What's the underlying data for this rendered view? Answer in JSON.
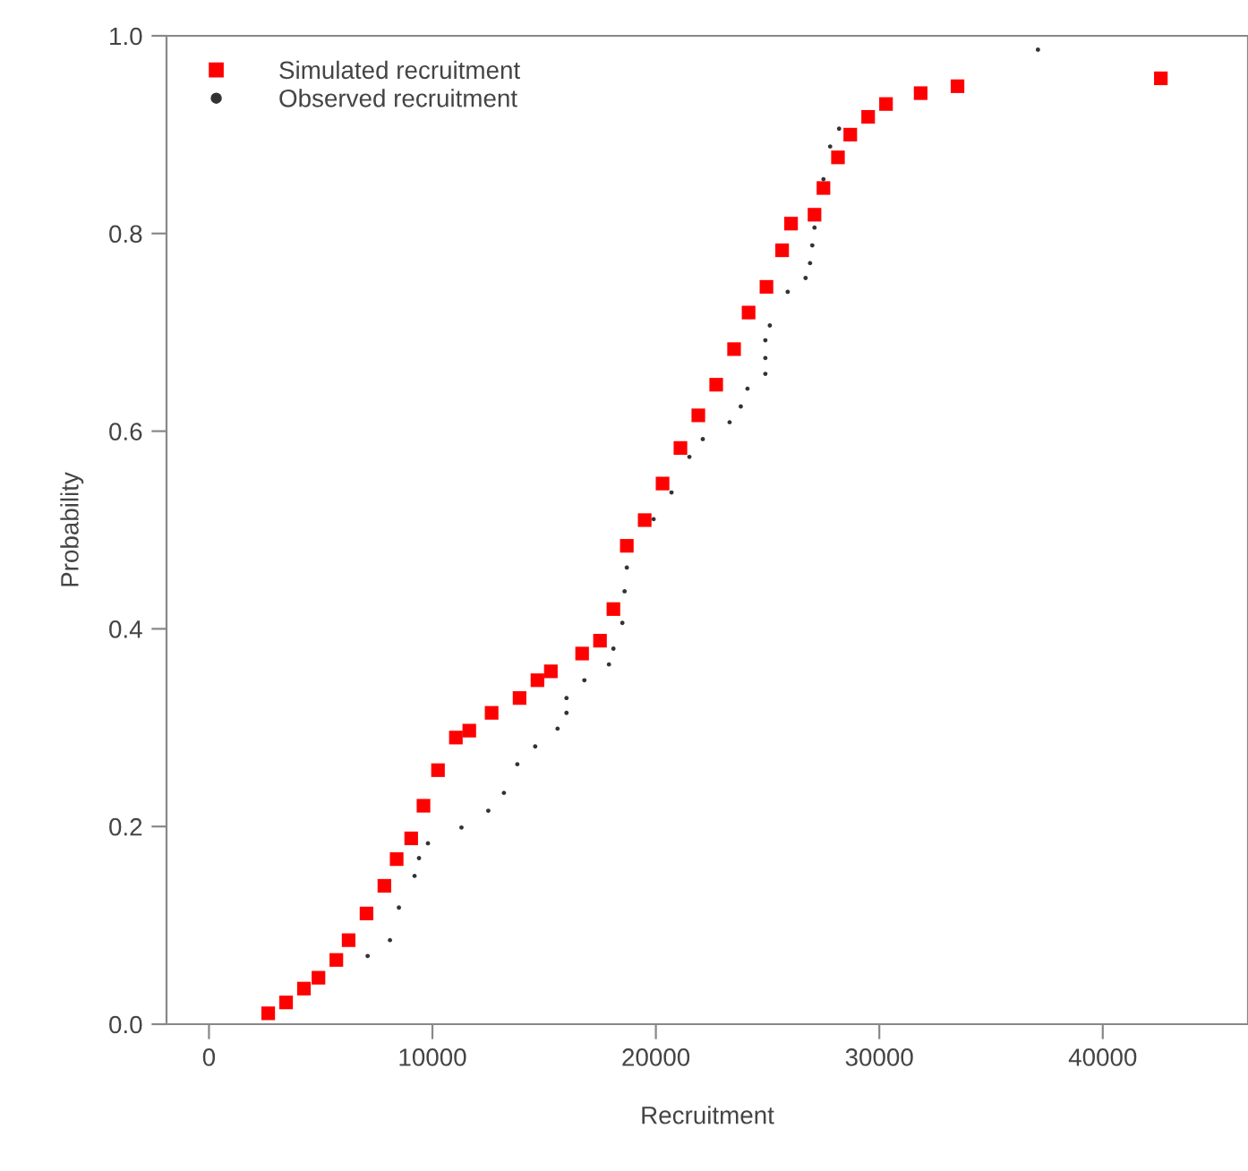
{
  "chart_data": {
    "type": "scatter",
    "xlabel": "Recruitment",
    "ylabel": "Probability",
    "xlim": [
      -1900,
      46500
    ],
    "ylim": [
      0,
      1
    ],
    "xticks": [
      0,
      10000,
      20000,
      30000,
      40000
    ],
    "yticks": [
      {
        "value": 0,
        "label": "0.0"
      },
      {
        "value": 0.2,
        "label": "0.2"
      },
      {
        "value": 0.4,
        "label": "0.4"
      },
      {
        "value": 0.6,
        "label": "0.6"
      },
      {
        "value": 0.8,
        "label": "0.8"
      },
      {
        "value": 1,
        "label": "1.0"
      }
    ],
    "grid": false,
    "legend": "top left",
    "series": [
      {
        "name": "Simulated recruitment",
        "color": "#ff0000",
        "marker": "square",
        "x": [
          2650,
          3450,
          4250,
          4900,
          5700,
          6250,
          7050,
          7850,
          8400,
          9050,
          9600,
          10250,
          11050,
          11650,
          12650,
          13900,
          14700,
          15300,
          16700,
          17500,
          18100,
          18700,
          19500,
          20300,
          21100,
          21900,
          22700,
          23500,
          24150,
          24950,
          25650,
          26050,
          27100,
          27500,
          28150,
          28700,
          29500,
          30300,
          31850,
          33500,
          42600
        ],
        "values": [
          0.011,
          0.022,
          0.036,
          0.047,
          0.065,
          0.085,
          0.112,
          0.14,
          0.167,
          0.188,
          0.221,
          0.257,
          0.29,
          0.297,
          0.315,
          0.33,
          0.348,
          0.357,
          0.375,
          0.388,
          0.42,
          0.484,
          0.51,
          0.547,
          0.583,
          0.616,
          0.647,
          0.683,
          0.72,
          0.746,
          0.783,
          0.81,
          0.819,
          0.846,
          0.877,
          0.9,
          0.918,
          0.931,
          0.942,
          0.949,
          0.957
        ]
      },
      {
        "name": "Observed recruitment",
        "color": "#333333",
        "marker": "circle",
        "x": [
          7100,
          8100,
          8500,
          9200,
          9400,
          9800,
          11300,
          12500,
          13200,
          13800,
          14600,
          15600,
          16000,
          16000,
          16800,
          17900,
          18100,
          18500,
          18600,
          18700,
          19900,
          20700,
          21500,
          22100,
          23300,
          23800,
          24100,
          24900,
          24900,
          24900,
          25100,
          25900,
          26700,
          26900,
          27000,
          27100,
          27500,
          27800,
          28200,
          37100
        ],
        "values": [
          0.069,
          0.085,
          0.118,
          0.15,
          0.168,
          0.183,
          0.199,
          0.216,
          0.234,
          0.263,
          0.281,
          0.299,
          0.315,
          0.33,
          0.348,
          0.364,
          0.38,
          0.406,
          0.438,
          0.462,
          0.511,
          0.538,
          0.574,
          0.592,
          0.609,
          0.625,
          0.643,
          0.658,
          0.674,
          0.692,
          0.707,
          0.741,
          0.755,
          0.77,
          0.788,
          0.806,
          0.855,
          0.888,
          0.906,
          0.986
        ]
      }
    ]
  }
}
